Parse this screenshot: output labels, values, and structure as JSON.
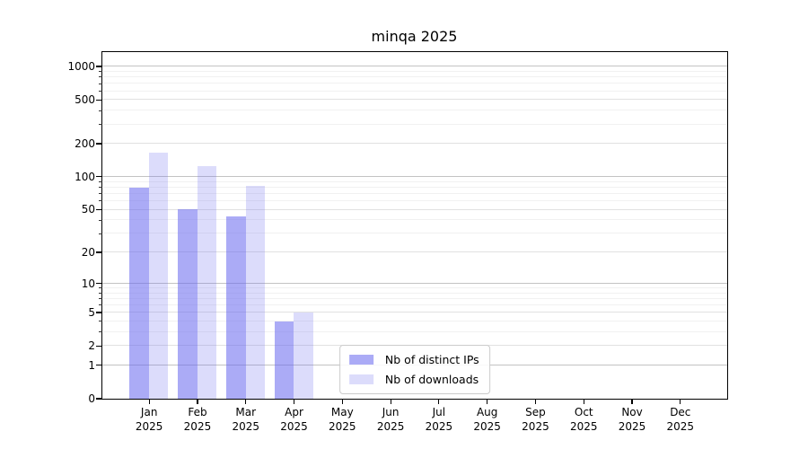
{
  "chart_data": {
    "type": "bar",
    "title": "minqa 2025",
    "categories": [
      "Jan",
      "Feb",
      "Mar",
      "Apr",
      "May",
      "Jun",
      "Jul",
      "Aug",
      "Sep",
      "Oct",
      "Nov",
      "Dec"
    ],
    "category_year": "2025",
    "series": [
      {
        "name": "Nb of distinct IPs",
        "base_color": "#6666ee",
        "alpha": 0.55,
        "solid_color": "#aaaaf6",
        "values": [
          80,
          50,
          43,
          4,
          0,
          0,
          0,
          0,
          0,
          0,
          0,
          0
        ]
      },
      {
        "name": "Nb of downloads",
        "base_color": "#6666ee",
        "alpha": 0.23,
        "solid_color": "#dcdcf9",
        "values": [
          165,
          125,
          83,
          5,
          0,
          0,
          0,
          0,
          0,
          0,
          0,
          0
        ]
      }
    ],
    "yscale": "log1p",
    "ylim": [
      0,
      1350
    ],
    "y_ticks": [
      0,
      1,
      2,
      5,
      10,
      20,
      50,
      100,
      200,
      500,
      1000
    ],
    "y_tick_labels": [
      "0",
      "1",
      "2",
      "5",
      "10",
      "20",
      "50",
      "100",
      "200",
      "500",
      "1000"
    ],
    "y_major_gridlines": [
      1,
      10,
      100,
      1000
    ],
    "y_mid_gridlines": [
      2,
      5,
      20,
      50,
      200,
      500
    ],
    "y_minor_gridlines": [
      3,
      4,
      6,
      7,
      8,
      9,
      30,
      40,
      60,
      70,
      80,
      90,
      300,
      400,
      600,
      700,
      800,
      900
    ],
    "grid": true,
    "legend_position": "lower center",
    "colors": {
      "axis": "#000000",
      "major_grid": "#c3c3c3",
      "mid_grid": "#e1e1e1",
      "minor_grid": "#f1f1f1",
      "legend_border": "#cccccc"
    }
  },
  "legend": {
    "items": [
      {
        "label": "Nb of distinct IPs"
      },
      {
        "label": "Nb of downloads"
      }
    ]
  }
}
